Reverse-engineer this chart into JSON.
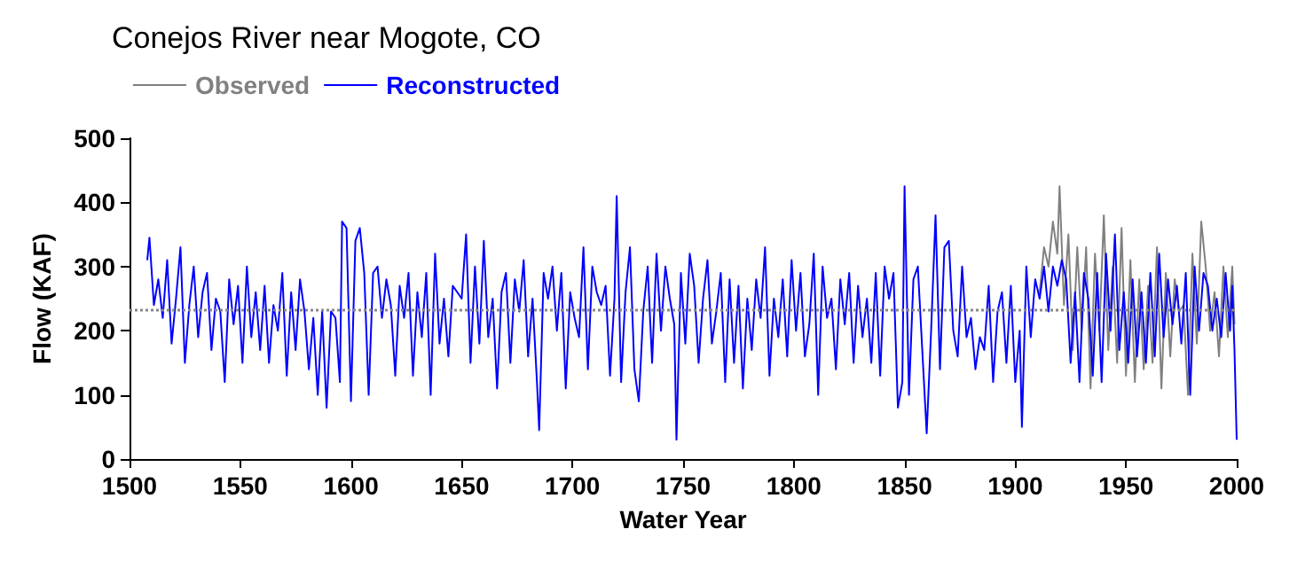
{
  "chart_data": {
    "type": "line",
    "title": "Conejos River near Mogote, CO",
    "xlabel": "Water Year",
    "ylabel": "Flow (KAF)",
    "xlim": [
      1500,
      2000
    ],
    "xticks": [
      1500,
      1550,
      1600,
      1650,
      1700,
      1750,
      1800,
      1850,
      1900,
      1950,
      2000
    ],
    "ylim": [
      0,
      500
    ],
    "yticks": [
      0,
      100,
      200,
      300,
      400,
      500
    ],
    "grid": false,
    "legend": "top left",
    "marker": "none",
    "line_style": "solid",
    "ref_lines": [
      {
        "axis": "y",
        "value": 232,
        "color": "#888888",
        "line_style": "dotted"
      }
    ],
    "series": [
      {
        "name": "Observed",
        "color": "#808080",
        "x": [
          1911,
          1913,
          1915,
          1917,
          1919,
          1920,
          1922,
          1924,
          1926,
          1928,
          1930,
          1932,
          1934,
          1936,
          1938,
          1940,
          1942,
          1944,
          1946,
          1948,
          1950,
          1952,
          1954,
          1956,
          1958,
          1960,
          1962,
          1964,
          1966,
          1968,
          1970,
          1972,
          1974,
          1976,
          1978,
          1980,
          1982,
          1984,
          1986,
          1988,
          1990,
          1992,
          1994,
          1996,
          1998,
          1999
        ],
        "values": [
          260,
          330,
          300,
          370,
          320,
          425,
          240,
          350,
          170,
          330,
          200,
          330,
          110,
          320,
          200,
          380,
          170,
          300,
          150,
          360,
          130,
          310,
          120,
          280,
          140,
          270,
          150,
          330,
          110,
          290,
          160,
          280,
          230,
          240,
          100,
          320,
          180,
          370,
          300,
          200,
          260,
          160,
          300,
          190,
          300,
          210
        ]
      },
      {
        "name": "Reconstructed",
        "color": "#0000ff",
        "x": [
          1508,
          1509,
          1511,
          1513,
          1515,
          1517,
          1519,
          1521,
          1523,
          1525,
          1527,
          1529,
          1531,
          1533,
          1535,
          1537,
          1539,
          1541,
          1543,
          1545,
          1547,
          1549,
          1551,
          1553,
          1555,
          1557,
          1559,
          1561,
          1563,
          1565,
          1567,
          1569,
          1571,
          1573,
          1575,
          1577,
          1579,
          1581,
          1583,
          1585,
          1587,
          1589,
          1591,
          1593,
          1595,
          1596,
          1598,
          1600,
          1602,
          1604,
          1606,
          1608,
          1610,
          1612,
          1614,
          1616,
          1618,
          1620,
          1622,
          1624,
          1626,
          1628,
          1630,
          1632,
          1634,
          1636,
          1638,
          1640,
          1642,
          1644,
          1646,
          1648,
          1650,
          1652,
          1654,
          1656,
          1658,
          1660,
          1662,
          1664,
          1666,
          1668,
          1670,
          1672,
          1674,
          1676,
          1678,
          1680,
          1682,
          1684,
          1685,
          1687,
          1689,
          1691,
          1693,
          1695,
          1697,
          1699,
          1701,
          1703,
          1705,
          1707,
          1709,
          1711,
          1713,
          1715,
          1717,
          1719,
          1720,
          1722,
          1724,
          1726,
          1728,
          1730,
          1732,
          1734,
          1736,
          1738,
          1740,
          1742,
          1744,
          1746,
          1747,
          1749,
          1751,
          1753,
          1755,
          1757,
          1759,
          1761,
          1763,
          1765,
          1767,
          1769,
          1771,
          1773,
          1775,
          1777,
          1779,
          1781,
          1783,
          1785,
          1787,
          1789,
          1791,
          1793,
          1795,
          1797,
          1799,
          1801,
          1803,
          1805,
          1807,
          1809,
          1811,
          1813,
          1815,
          1817,
          1819,
          1821,
          1823,
          1825,
          1827,
          1829,
          1831,
          1833,
          1835,
          1837,
          1839,
          1841,
          1843,
          1845,
          1847,
          1849,
          1850,
          1852,
          1854,
          1856,
          1858,
          1860,
          1862,
          1864,
          1866,
          1868,
          1870,
          1872,
          1874,
          1876,
          1878,
          1880,
          1882,
          1884,
          1886,
          1888,
          1890,
          1892,
          1894,
          1896,
          1898,
          1900,
          1902,
          1903,
          1905,
          1907,
          1909,
          1911,
          1913,
          1915,
          1917,
          1919,
          1921,
          1923,
          1925,
          1927,
          1929,
          1931,
          1933,
          1935,
          1937,
          1939,
          1941,
          1943,
          1945,
          1947,
          1949,
          1951,
          1953,
          1955,
          1957,
          1959,
          1961,
          1963,
          1965,
          1967,
          1969,
          1971,
          1973,
          1975,
          1977,
          1979,
          1981,
          1983,
          1985,
          1987,
          1989,
          1991,
          1993,
          1995,
          1997,
          1998,
          1999,
          2000
        ],
        "values": [
          310,
          345,
          240,
          280,
          220,
          310,
          180,
          250,
          330,
          150,
          240,
          300,
          190,
          260,
          290,
          170,
          250,
          230,
          120,
          280,
          210,
          270,
          150,
          300,
          190,
          260,
          170,
          270,
          150,
          240,
          200,
          290,
          130,
          260,
          170,
          280,
          230,
          140,
          220,
          100,
          230,
          80,
          230,
          220,
          120,
          370,
          360,
          90,
          340,
          360,
          290,
          100,
          290,
          300,
          220,
          280,
          240,
          130,
          270,
          220,
          290,
          130,
          260,
          190,
          290,
          100,
          320,
          180,
          250,
          160,
          270,
          260,
          250,
          350,
          150,
          300,
          180,
          340,
          190,
          250,
          110,
          260,
          290,
          150,
          280,
          230,
          310,
          160,
          250,
          120,
          45,
          290,
          250,
          300,
          200,
          290,
          110,
          260,
          220,
          190,
          330,
          140,
          300,
          260,
          240,
          270,
          130,
          250,
          410,
          120,
          260,
          330,
          140,
          90,
          230,
          300,
          150,
          320,
          200,
          300,
          250,
          210,
          30,
          290,
          180,
          320,
          270,
          150,
          250,
          310,
          180,
          230,
          290,
          120,
          280,
          150,
          270,
          110,
          250,
          170,
          280,
          220,
          330,
          130,
          250,
          190,
          280,
          160,
          310,
          200,
          290,
          160,
          210,
          320,
          100,
          300,
          220,
          250,
          140,
          280,
          210,
          290,
          150,
          270,
          190,
          250,
          150,
          290,
          130,
          300,
          250,
          290,
          80,
          120,
          425,
          100,
          280,
          300,
          170,
          40,
          200,
          380,
          140,
          330,
          340,
          200,
          160,
          300,
          190,
          220,
          140,
          190,
          170,
          270,
          120,
          230,
          260,
          150,
          270,
          120,
          200,
          50,
          300,
          190,
          280,
          250,
          300,
          230,
          300,
          270,
          310,
          280,
          150,
          260,
          120,
          290,
          250,
          130,
          290,
          120,
          320,
          200,
          350,
          170,
          260,
          150,
          280,
          160,
          260,
          150,
          290,
          160,
          320,
          190,
          280,
          210,
          270,
          180,
          290,
          100,
          300,
          200,
          290,
          270,
          200,
          250,
          190,
          290,
          200,
          270,
          170,
          30
        ]
      }
    ]
  }
}
